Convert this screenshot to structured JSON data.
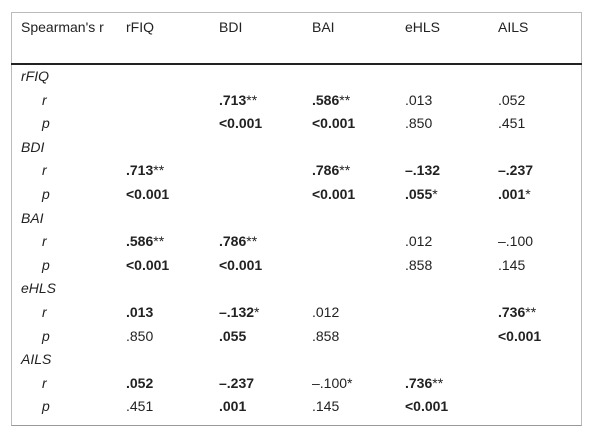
{
  "table": {
    "header": [
      "Spearman's r",
      "rFIQ",
      "BDI",
      "BAI",
      "eHLS",
      "AILS"
    ],
    "groups": [
      {
        "name": "rFIQ",
        "rows": [
          {
            "label": "r",
            "cells": [
              null,
              {
                "text": ".713",
                "note": "**",
                "bold": true
              },
              {
                "text": ".586",
                "note": "**",
                "bold": true
              },
              {
                "text": ".013",
                "bold": false
              },
              {
                "text": ".052",
                "bold": false
              }
            ]
          },
          {
            "label": "p",
            "cells": [
              null,
              {
                "text": "<0.001",
                "bold": true
              },
              {
                "text": "<0.001",
                "bold": true
              },
              {
                "text": ".850",
                "bold": false
              },
              {
                "text": ".451",
                "bold": false
              }
            ]
          }
        ]
      },
      {
        "name": "BDI",
        "rows": [
          {
            "label": "r",
            "cells": [
              {
                "text": ".713",
                "note": "**",
                "bold": true
              },
              null,
              {
                "text": ".786",
                "note": "**",
                "bold": true
              },
              {
                "text": "–.132",
                "bold": true
              },
              {
                "text": "–.237",
                "bold": true
              }
            ]
          },
          {
            "label": "p",
            "cells": [
              {
                "text": "<0.001",
                "bold": true
              },
              null,
              {
                "text": "<0.001",
                "bold": true
              },
              {
                "text": ".055",
                "note": "*",
                "bold": true
              },
              {
                "text": ".001",
                "note": "*",
                "bold": true
              }
            ]
          }
        ]
      },
      {
        "name": "BAI",
        "rows": [
          {
            "label": "r",
            "cells": [
              {
                "text": ".586",
                "note": "**",
                "bold": true
              },
              {
                "text": ".786",
                "note": "**",
                "bold": true
              },
              null,
              {
                "text": ".012",
                "bold": false
              },
              {
                "text": "–.100",
                "bold": false
              }
            ]
          },
          {
            "label": "p",
            "cells": [
              {
                "text": "<0.001",
                "bold": true
              },
              {
                "text": "<0.001",
                "bold": true
              },
              null,
              {
                "text": ".858",
                "bold": false
              },
              {
                "text": ".145",
                "bold": false
              }
            ]
          }
        ]
      },
      {
        "name": "eHLS",
        "rows": [
          {
            "label": "r",
            "cells": [
              {
                "text": ".013",
                "bold": true
              },
              {
                "text": "–.132",
                "note": "*",
                "bold": true
              },
              {
                "text": ".012",
                "bold": false
              },
              null,
              {
                "text": ".736",
                "note": "**",
                "bold": true
              }
            ]
          },
          {
            "label": "p",
            "cells": [
              {
                "text": ".850",
                "bold": false
              },
              {
                "text": ".055",
                "bold": true
              },
              {
                "text": ".858",
                "bold": false
              },
              null,
              {
                "text": "<0.001",
                "bold": true
              }
            ]
          }
        ]
      },
      {
        "name": "AILS",
        "rows": [
          {
            "label": "r",
            "cells": [
              {
                "text": ".052",
                "bold": true
              },
              {
                "text": "–.237",
                "bold": true
              },
              {
                "text": "–.100",
                "note": "*",
                "bold": false
              },
              {
                "text": ".736",
                "note": "**",
                "bold": true
              },
              null
            ]
          },
          {
            "label": "p",
            "cells": [
              {
                "text": ".451",
                "bold": false
              },
              {
                "text": ".001",
                "bold": true
              },
              {
                "text": ".145",
                "bold": false
              },
              {
                "text": "<0.001",
                "bold": true
              },
              null
            ]
          }
        ]
      }
    ]
  }
}
